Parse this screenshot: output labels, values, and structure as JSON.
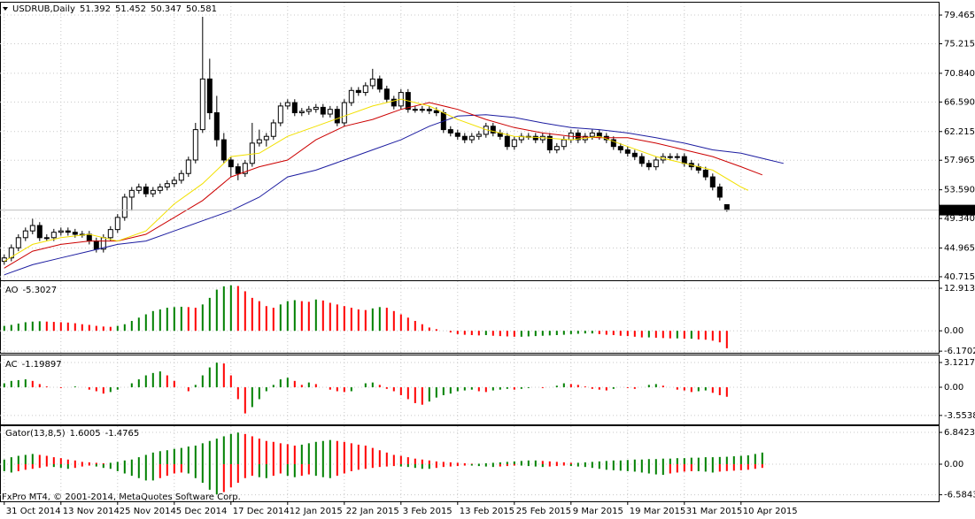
{
  "chart_data": [
    {
      "type": "candlestick",
      "title": "USDRUB,Daily",
      "color": "#000000",
      "up_fill": "#ffffff",
      "grid": true,
      "open": [
        43.0,
        43.5,
        45.0,
        46.5,
        47.5,
        48.3,
        46.5,
        46.5,
        47.3,
        47.5,
        47.3,
        47.0,
        47.0,
        46.0,
        44.8,
        46.5,
        47.7,
        49.5,
        52.5,
        53.5,
        54.0,
        53.0,
        53.5,
        54.0,
        54.5,
        55.0,
        56.0,
        58.0,
        62.5,
        70.0,
        65.0,
        61.0,
        58.0,
        57.0,
        56.0,
        57.5,
        60.5,
        61.0,
        61.5,
        63.5,
        66.0,
        66.5,
        65.0,
        65.2,
        65.5,
        65.8,
        64.8,
        65.5,
        63.5,
        66.5,
        68.3,
        68.0,
        69.0,
        70.0,
        68.5,
        67.0,
        66.0,
        68.0,
        65.5,
        65.5,
        65.5,
        65.3,
        65.0,
        62.5,
        62.0,
        61.5,
        61.0,
        61.5,
        61.8,
        63.0,
        62.0,
        61.5,
        60.0,
        61.0,
        61.5,
        61.5,
        61.0,
        61.5,
        59.5,
        60.0,
        61.0,
        62.0,
        61.0,
        61.5,
        62.0,
        61.5,
        61.0,
        60.0,
        59.5,
        59.0,
        58.5,
        57.5,
        57.0,
        58.0,
        58.5,
        58.5,
        58.5,
        57.5,
        57.0,
        56.5,
        55.5,
        54.0,
        51.392
      ],
      "high": [
        44.0,
        45.5,
        47.0,
        48.0,
        49.3,
        48.8,
        47.0,
        47.8,
        48.0,
        48.0,
        47.8,
        47.5,
        47.5,
        46.5,
        47.0,
        48.2,
        50.0,
        53.0,
        54.0,
        54.5,
        54.5,
        54.0,
        54.5,
        55.0,
        55.5,
        56.5,
        58.5,
        63.5,
        79.2,
        73.0,
        67.5,
        62.0,
        58.5,
        57.5,
        58.0,
        63.5,
        62.5,
        62.0,
        64.0,
        66.5,
        67.0,
        67.0,
        65.7,
        66.0,
        66.3,
        66.3,
        66.0,
        66.0,
        67.0,
        68.8,
        68.8,
        69.5,
        71.5,
        70.5,
        69.0,
        67.5,
        68.5,
        68.5,
        66.0,
        66.0,
        66.0,
        65.8,
        65.5,
        63.0,
        62.5,
        62.0,
        62.0,
        62.3,
        63.5,
        63.5,
        62.5,
        62.0,
        61.5,
        62.0,
        62.0,
        62.0,
        62.0,
        62.0,
        60.5,
        61.5,
        62.5,
        62.5,
        62.0,
        62.5,
        62.5,
        62.0,
        61.5,
        60.5,
        60.0,
        59.5,
        59.0,
        58.0,
        58.5,
        59.0,
        59.0,
        59.0,
        59.0,
        58.0,
        57.5,
        57.0,
        56.0,
        54.5,
        51.452
      ],
      "low": [
        42.5,
        43.0,
        44.5,
        46.0,
        47.0,
        46.0,
        46.0,
        46.0,
        46.8,
        46.8,
        46.5,
        46.5,
        45.5,
        44.3,
        44.3,
        46.0,
        47.2,
        49.0,
        50.5,
        53.0,
        52.5,
        52.5,
        53.0,
        53.5,
        54.0,
        54.5,
        55.5,
        57.5,
        62.0,
        64.0,
        60.0,
        57.5,
        55.5,
        55.0,
        55.5,
        57.0,
        60.0,
        60.0,
        61.0,
        63.0,
        65.5,
        64.5,
        64.5,
        64.7,
        65.0,
        64.3,
        64.3,
        63.0,
        63.0,
        66.0,
        67.5,
        67.5,
        68.5,
        68.0,
        66.5,
        65.5,
        65.5,
        65.0,
        65.0,
        65.0,
        64.8,
        64.5,
        62.0,
        61.5,
        61.0,
        60.5,
        60.5,
        61.0,
        61.3,
        61.5,
        61.0,
        59.5,
        59.5,
        60.5,
        61.0,
        60.5,
        60.5,
        59.0,
        59.0,
        59.5,
        60.5,
        60.5,
        60.5,
        61.0,
        61.0,
        60.5,
        59.5,
        59.0,
        58.5,
        58.0,
        57.0,
        56.5,
        56.5,
        57.5,
        58.0,
        58.0,
        57.0,
        56.5,
        56.0,
        55.0,
        53.5,
        52.0,
        50.347
      ],
      "close": [
        43.5,
        45.0,
        46.5,
        47.5,
        48.3,
        46.5,
        46.5,
        47.3,
        47.5,
        47.3,
        47.0,
        47.0,
        46.0,
        44.8,
        46.5,
        47.7,
        49.5,
        52.5,
        53.5,
        54.0,
        53.0,
        53.5,
        54.0,
        54.5,
        55.0,
        56.0,
        58.0,
        62.5,
        70.0,
        65.0,
        61.0,
        58.0,
        57.0,
        56.0,
        57.5,
        60.5,
        61.0,
        61.5,
        63.5,
        66.0,
        66.5,
        65.0,
        65.2,
        65.5,
        65.8,
        64.8,
        65.5,
        63.5,
        66.5,
        68.3,
        68.0,
        69.0,
        70.0,
        68.5,
        67.0,
        66.0,
        68.0,
        65.5,
        65.5,
        65.5,
        65.3,
        65.0,
        62.5,
        62.0,
        61.5,
        61.0,
        61.5,
        61.8,
        63.0,
        62.0,
        61.5,
        60.0,
        61.0,
        61.5,
        61.5,
        61.0,
        61.5,
        59.5,
        60.0,
        61.0,
        62.0,
        61.0,
        61.5,
        62.0,
        61.5,
        61.0,
        60.0,
        59.5,
        59.0,
        58.5,
        57.5,
        57.0,
        58.0,
        58.5,
        58.5,
        58.5,
        57.5,
        57.0,
        56.5,
        55.5,
        54.0,
        52.5,
        50.581
      ],
      "price_line_color": "#c0c0c0",
      "lines": [
        {
          "color": "#1c1ca0",
          "x": [
            0,
            4,
            8,
            12,
            16,
            20,
            24,
            28,
            32,
            36,
            40,
            44,
            48,
            52,
            56,
            60,
            64,
            68,
            72,
            76,
            80,
            84,
            88,
            92,
            96,
            100,
            104,
            108,
            110
          ],
          "values": [
            41.0,
            42.5,
            43.5,
            44.5,
            45.5,
            46.0,
            47.5,
            49.0,
            50.5,
            52.5,
            55.5,
            56.5,
            58.0,
            59.5,
            61.0,
            63.0,
            64.5,
            64.7,
            64.3,
            63.5,
            62.8,
            62.5,
            62.0,
            61.3,
            60.5,
            59.5,
            59.0,
            58.0,
            57.5
          ]
        },
        {
          "color": "#cc0000",
          "x": [
            0,
            4,
            8,
            12,
            16,
            20,
            24,
            28,
            32,
            36,
            40,
            44,
            48,
            52,
            56,
            60,
            64,
            68,
            72,
            76,
            80,
            84,
            88,
            92,
            96,
            100,
            104,
            107
          ],
          "values": [
            42.0,
            44.5,
            45.5,
            46.0,
            46.0,
            47.0,
            49.5,
            52.0,
            55.5,
            57.0,
            58.0,
            61.0,
            63.0,
            64.0,
            65.5,
            66.5,
            65.5,
            64.0,
            62.8,
            62.0,
            61.5,
            61.3,
            61.3,
            60.5,
            59.5,
            58.5,
            57.0,
            55.8
          ]
        },
        {
          "color": "#f2e000",
          "x": [
            0,
            4,
            8,
            12,
            16,
            20,
            24,
            28,
            32,
            36,
            40,
            44,
            48,
            52,
            56,
            60,
            64,
            68,
            72,
            76,
            80,
            84,
            88,
            92,
            96,
            100,
            104,
            105
          ],
          "values": [
            43.0,
            45.5,
            46.5,
            47.0,
            46.0,
            47.5,
            51.5,
            54.5,
            58.5,
            59.0,
            61.5,
            63.0,
            64.5,
            66.0,
            67.0,
            66.0,
            64.0,
            62.5,
            61.5,
            61.3,
            61.0,
            61.5,
            60.0,
            58.5,
            57.5,
            56.5,
            54.0,
            53.5
          ]
        }
      ],
      "ylim": [
        40.32,
        81.04
      ],
      "yticks": [
        79.465,
        75.215,
        {
          "value": 70.84,
          "label": "70.840"
        },
        {
          "value": 66.59,
          "label": "66.590"
        },
        62.215,
        57.965,
        {
          "value": 53.59,
          "label": "53.590"
        },
        {
          "value": 49.34,
          "label": "49.340"
        },
        44.965,
        40.715
      ],
      "xlim": [
        -0.6,
        131.9
      ],
      "xticks": [
        {
          "value": 0,
          "label": "31 Oct 2014"
        },
        {
          "value": 8,
          "label": "13 Nov 2014"
        },
        {
          "value": 16,
          "label": "25 Nov 2014"
        },
        {
          "value": 24,
          "label": "5 Dec 2014"
        },
        {
          "value": 32,
          "label": "17 Dec 2014"
        },
        {
          "value": 40,
          "label": "12 Jan 2015"
        },
        {
          "value": 48,
          "label": "22 Jan 2015"
        },
        {
          "value": 56,
          "label": "3 Feb 2015"
        },
        {
          "value": 64,
          "label": "13 Feb 2015"
        },
        {
          "value": 72,
          "label": "25 Feb 2015"
        },
        {
          "value": 80,
          "label": "9 Mar 2015"
        },
        {
          "value": 88,
          "label": "19 Mar 2015"
        },
        {
          "value": 96,
          "label": "31 Mar 2015"
        },
        {
          "value": 104,
          "label": "10 Apr 2015"
        }
      ]
    },
    {
      "type": "bar",
      "title": "AO",
      "up_color": "#008000",
      "down_color": "#ff0000",
      "values": [
        1.5,
        1.8,
        2.2,
        2.6,
        2.8,
        2.9,
        2.8,
        2.7,
        2.6,
        2.5,
        2.3,
        2.0,
        1.8,
        1.5,
        1.3,
        1.2,
        1.5,
        2.0,
        3.0,
        4.0,
        5.0,
        6.0,
        6.5,
        7.0,
        7.2,
        7.3,
        7.2,
        7.0,
        8.0,
        10.0,
        12.5,
        13.5,
        13.8,
        13.6,
        12.0,
        10.0,
        9.0,
        7.5,
        7.0,
        8.0,
        9.0,
        9.3,
        9.0,
        8.8,
        9.5,
        9.2,
        8.5,
        8.0,
        7.5,
        7.0,
        6.5,
        6.3,
        6.8,
        7.2,
        7.0,
        6.0,
        5.0,
        4.0,
        3.0,
        2.0,
        1.0,
        0.5,
        0.0,
        -0.5,
        -1.0,
        -1.2,
        -1.3,
        -1.4,
        -1.3,
        -1.5,
        -1.6,
        -1.7,
        -1.8,
        -1.8,
        -1.7,
        -1.6,
        -1.5,
        -1.4,
        -1.3,
        -1.2,
        -1.0,
        -0.9,
        -0.8,
        -0.8,
        -1.0,
        -1.2,
        -1.3,
        -1.5,
        -1.6,
        -1.8,
        -2.0,
        -2.0,
        -2.1,
        -2.2,
        -2.3,
        -2.3,
        -2.4,
        -2.4,
        -2.6,
        -2.7,
        -3.0,
        -3.5,
        -5.3027
      ],
      "ylim": [
        -6.4,
        14.53
      ],
      "yticks": [
        12.9131,
        {
          "value": 0,
          "label": "0.00"
        },
        -6.1702
      ]
    },
    {
      "type": "bar",
      "title": "AC",
      "up_color": "#008000",
      "down_color": "#ff0000",
      "values": [
        0.5,
        0.8,
        0.9,
        1.0,
        0.8,
        0.4,
        0.1,
        0.0,
        -0.1,
        0.0,
        0.1,
        0.0,
        -0.3,
        -0.5,
        -0.8,
        -0.6,
        -0.3,
        0.0,
        0.5,
        1.0,
        1.5,
        1.8,
        2.0,
        1.5,
        0.8,
        0.0,
        -0.5,
        0.3,
        1.5,
        2.5,
        3.1,
        3.0,
        1.5,
        -1.5,
        -3.3,
        -2.5,
        -1.5,
        -0.5,
        0.3,
        1.0,
        1.2,
        0.8,
        0.3,
        0.6,
        0.4,
        0.0,
        -0.3,
        -0.5,
        -0.6,
        -0.5,
        0.0,
        0.5,
        0.6,
        0.3,
        -0.2,
        -0.5,
        -1.0,
        -1.5,
        -2.0,
        -2.2,
        -1.8,
        -1.3,
        -1.0,
        -0.8,
        -0.5,
        -0.4,
        -0.3,
        -0.5,
        -0.6,
        -0.4,
        -0.3,
        -0.2,
        -0.3,
        -0.2,
        -0.1,
        0.0,
        -0.1,
        0.0,
        0.2,
        0.5,
        0.4,
        0.3,
        0.1,
        -0.2,
        -0.3,
        -0.4,
        -0.2,
        0.0,
        -0.1,
        -0.2,
        0.0,
        0.3,
        0.4,
        0.2,
        0.0,
        -0.3,
        -0.4,
        -0.6,
        -0.5,
        -0.4,
        -0.7,
        -1.0,
        -1.19897
      ],
      "ylim": [
        -4.57,
        3.79
      ],
      "yticks": [
        3.12175,
        {
          "value": 0,
          "label": "0.00"
        },
        -3.55383
      ]
    },
    {
      "type": "gator",
      "title": "Gator(13,8,5)",
      "up_color": "#008000",
      "down_color": "#ff0000",
      "upper": [
        1.0,
        1.5,
        1.8,
        2.0,
        2.2,
        2.0,
        1.8,
        1.5,
        1.3,
        1.0,
        0.8,
        0.5,
        0.4,
        0.3,
        0.2,
        0.3,
        0.5,
        0.8,
        1.0,
        1.5,
        2.0,
        2.5,
        2.8,
        3.0,
        3.3,
        3.5,
        3.8,
        4.0,
        4.5,
        5.0,
        5.5,
        6.0,
        6.5,
        6.8,
        6.5,
        6.0,
        5.5,
        5.0,
        4.8,
        4.5,
        4.3,
        4.0,
        4.2,
        4.5,
        4.8,
        5.0,
        5.2,
        5.0,
        4.8,
        4.5,
        4.2,
        4.0,
        3.5,
        3.0,
        2.5,
        2.0,
        1.8,
        1.5,
        1.2,
        1.0,
        0.8,
        0.6,
        0.5,
        0.4,
        0.3,
        0.2,
        0.1,
        0.1,
        0.2,
        0.3,
        0.4,
        0.5,
        0.6,
        0.7,
        0.8,
        0.8,
        0.7,
        0.6,
        0.5,
        0.4,
        0.3,
        0.3,
        0.4,
        0.5,
        0.6,
        0.7,
        0.8,
        0.8,
        0.9,
        1.0,
        1.0,
        1.1,
        1.1,
        1.2,
        1.2,
        1.3,
        1.3,
        1.4,
        1.4,
        1.5,
        1.5,
        1.55,
        1.6005,
        1.7,
        1.8,
        1.9,
        2.2,
        2.5
      ],
      "lower": [
        -1.5,
        -1.8,
        -1.5,
        -1.2,
        -1.0,
        -0.8,
        -0.5,
        -0.6,
        -0.8,
        -1.0,
        -0.8,
        -0.5,
        -0.3,
        -0.5,
        -0.8,
        -1.0,
        -1.5,
        -2.0,
        -2.5,
        -3.0,
        -3.5,
        -3.5,
        -3.0,
        -2.5,
        -2.0,
        -1.8,
        -2.0,
        -3.0,
        -4.0,
        -5.5,
        -6.5,
        -6.0,
        -5.0,
        -4.0,
        -3.0,
        -2.5,
        -2.8,
        -3.0,
        -2.5,
        -2.0,
        -2.5,
        -2.8,
        -2.5,
        -2.2,
        -2.5,
        -2.8,
        -3.0,
        -2.5,
        -2.0,
        -1.5,
        -1.2,
        -1.0,
        -0.8,
        -0.6,
        -0.5,
        -0.4,
        -0.5,
        -0.6,
        -0.8,
        -1.0,
        -1.0,
        -0.8,
        -0.6,
        -0.5,
        -0.4,
        -0.3,
        -0.3,
        -0.4,
        -0.5,
        -0.6,
        -0.5,
        -0.4,
        -0.3,
        -0.3,
        -0.4,
        -0.5,
        -0.6,
        -0.5,
        -0.4,
        -0.3,
        -0.4,
        -0.5,
        -0.6,
        -0.8,
        -1.0,
        -1.2,
        -1.3,
        -1.4,
        -1.5,
        -1.6,
        -1.8,
        -2.0,
        -2.2,
        -2.3,
        -2.0,
        -1.8,
        -1.6,
        -1.5,
        -1.5,
        -1.6,
        -1.8,
        -1.6,
        -1.4765,
        -1.4,
        -1.3,
        -1.2,
        -1.0,
        -0.8
      ],
      "ylim": [
        -7.8,
        7.8
      ],
      "yticks": [
        6.8423,
        {
          "value": 0,
          "label": "0.00"
        },
        -6.5843
      ]
    }
  ],
  "footer": "FxPro MT4, © 2001-2014, MetaQuotes Software Corp."
}
